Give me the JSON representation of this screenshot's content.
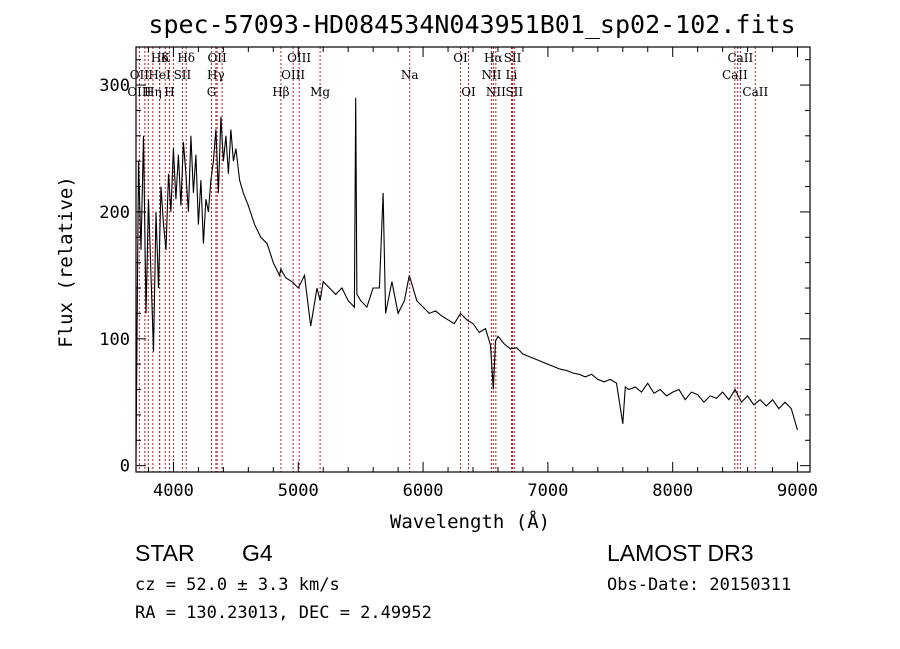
{
  "chart_data": {
    "type": "line",
    "title": "spec-57093-HD084534N043951B01_sp02-102.fits",
    "xlabel": "Wavelength (Å)",
    "ylabel": "Flux (relative)",
    "xlim": [
      3700,
      9100
    ],
    "ylim": [
      -5,
      330
    ],
    "xticks": [
      4000,
      5000,
      6000,
      7000,
      8000,
      9000
    ],
    "yticks": [
      0,
      100,
      200,
      300
    ],
    "series": [
      {
        "name": "spectrum",
        "x": [
          3700,
          3720,
          3740,
          3760,
          3780,
          3800,
          3820,
          3840,
          3860,
          3880,
          3900,
          3920,
          3940,
          3960,
          3980,
          4000,
          4020,
          4040,
          4060,
          4080,
          4100,
          4120,
          4140,
          4160,
          4180,
          4200,
          4220,
          4240,
          4260,
          4280,
          4300,
          4320,
          4340,
          4360,
          4380,
          4400,
          4420,
          4440,
          4460,
          4480,
          4500,
          4530,
          4560,
          4600,
          4650,
          4700,
          4750,
          4800,
          4850,
          4860,
          4900,
          4950,
          5000,
          5050,
          5100,
          5150,
          5175,
          5200,
          5250,
          5300,
          5350,
          5400,
          5450,
          5460,
          5470,
          5500,
          5550,
          5600,
          5650,
          5680,
          5700,
          5750,
          5800,
          5850,
          5890,
          5950,
          6000,
          6050,
          6100,
          6150,
          6200,
          6250,
          6300,
          6350,
          6400,
          6450,
          6500,
          6540,
          6563,
          6580,
          6600,
          6650,
          6700,
          6750,
          6800,
          6850,
          6900,
          6950,
          7000,
          7050,
          7100,
          7150,
          7200,
          7250,
          7300,
          7350,
          7400,
          7450,
          7500,
          7550,
          7600,
          7620,
          7650,
          7700,
          7750,
          7800,
          7850,
          7900,
          7950,
          8000,
          8050,
          8100,
          8150,
          8200,
          8250,
          8300,
          8350,
          8400,
          8450,
          8500,
          8550,
          8600,
          8650,
          8700,
          8750,
          8800,
          8850,
          8900,
          8950,
          9000
        ],
        "values": [
          5,
          240,
          170,
          260,
          120,
          210,
          150,
          90,
          200,
          140,
          220,
          190,
          170,
          230,
          200,
          250,
          210,
          245,
          205,
          255,
          230,
          200,
          260,
          215,
          245,
          190,
          225,
          175,
          210,
          200,
          225,
          240,
          265,
          215,
          275,
          240,
          260,
          230,
          265,
          240,
          250,
          225,
          215,
          205,
          190,
          180,
          175,
          160,
          150,
          155,
          148,
          145,
          140,
          150,
          110,
          140,
          130,
          145,
          140,
          135,
          140,
          130,
          125,
          290,
          135,
          130,
          125,
          140,
          140,
          215,
          120,
          145,
          120,
          130,
          150,
          130,
          125,
          120,
          122,
          118,
          115,
          112,
          120,
          115,
          112,
          105,
          108,
          95,
          60,
          98,
          102,
          96,
          92,
          93,
          88,
          86,
          84,
          82,
          80,
          78,
          76,
          75,
          73,
          72,
          70,
          72,
          68,
          66,
          68,
          65,
          33,
          62,
          60,
          62,
          58,
          65,
          57,
          60,
          55,
          58,
          60,
          52,
          58,
          56,
          50,
          55,
          53,
          58,
          52,
          60,
          50,
          55,
          48,
          52,
          47,
          52,
          45,
          50,
          45,
          28
        ]
      }
    ]
  },
  "lines": {
    "top": [
      {
        "label": "Hδ",
        "wave": 3890
      },
      {
        "label": "K",
        "wave": 3934
      },
      {
        "label": "Hδ",
        "wave": 4102
      },
      {
        "label": "OII",
        "wave": 4350
      },
      {
        "label": "OIII",
        "wave": 5007
      },
      {
        "label": "OI",
        "wave": 6300
      },
      {
        "label": "Hα",
        "wave": 6563
      },
      {
        "label": "SII",
        "wave": 6717
      },
      {
        "label": "CaII",
        "wave": 8542
      }
    ],
    "mid": [
      {
        "label": "OII",
        "wave": 3727
      },
      {
        "label": "HeI",
        "wave": 3889
      },
      {
        "label": "SII",
        "wave": 4072
      },
      {
        "label": "Hγ",
        "wave": 4340
      },
      {
        "label": "OIII",
        "wave": 4959
      },
      {
        "label": "Na",
        "wave": 5893
      },
      {
        "label": "NII",
        "wave": 6548
      },
      {
        "label": "Li",
        "wave": 6708
      },
      {
        "label": "CaII",
        "wave": 8498
      }
    ],
    "bottom": [
      {
        "label": "OIII",
        "wave": 3727
      },
      {
        "label": "Hη",
        "wave": 3835
      },
      {
        "label": "H",
        "wave": 3968
      },
      {
        "label": "G",
        "wave": 4305
      },
      {
        "label": "Hβ",
        "wave": 4861
      },
      {
        "label": "Mg",
        "wave": 5175
      },
      {
        "label": "OI",
        "wave": 6364
      },
      {
        "label": "NII",
        "wave": 6583
      },
      {
        "label": "SII",
        "wave": 6731
      },
      {
        "label": "CaII",
        "wave": 8662
      }
    ],
    "extra_waves": [
      3798,
      3771,
      4000,
      4390,
      6716,
      8520
    ]
  },
  "info": {
    "class": "STAR",
    "subclass": "G4",
    "cz": "cz = 52.0 ± 3.3 km/s",
    "coords": "RA = 130.23013, DEC =    2.49952",
    "survey": "LAMOST DR3",
    "obs_date": "Obs-Date: 20150311"
  },
  "colors": {
    "line": "#000000",
    "marker": "#b22222"
  }
}
